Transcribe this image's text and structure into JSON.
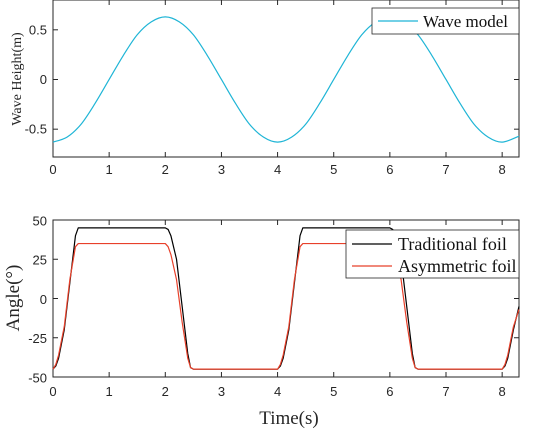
{
  "chart_data": [
    {
      "type": "line",
      "xlabel": "",
      "ylabel": "Wave Height(m)",
      "xlim": [
        0,
        8.3
      ],
      "ylim": [
        -0.78,
        0.8
      ],
      "xticks": [
        0,
        1,
        2,
        3,
        4,
        5,
        6,
        7,
        8
      ],
      "xtick_labels": [
        "0",
        "1",
        "2",
        "3",
        "4",
        "5",
        "6",
        "7",
        "8"
      ],
      "yticks": [
        -0.5,
        0,
        0.5
      ],
      "ytick_labels": [
        "-0.5",
        "0",
        "0.5"
      ],
      "legend": "top-right",
      "grid": false,
      "series": [
        {
          "name": "Wave model",
          "color": "#1fb5d6",
          "x": [
            0,
            0.25,
            0.5,
            0.75,
            1,
            1.25,
            1.5,
            1.75,
            2,
            2.25,
            2.5,
            2.75,
            3,
            3.25,
            3.5,
            3.75,
            4,
            4.25,
            4.5,
            4.75,
            5,
            5.25,
            5.5,
            5.75,
            6,
            6.25,
            6.5,
            6.75,
            7,
            7.25,
            7.5,
            7.75,
            8,
            8.3
          ],
          "y": [
            -0.63,
            -0.58,
            -0.45,
            -0.24,
            0,
            0.24,
            0.45,
            0.58,
            0.63,
            0.58,
            0.45,
            0.24,
            0,
            -0.24,
            -0.45,
            -0.58,
            -0.63,
            -0.58,
            -0.45,
            -0.24,
            0,
            0.24,
            0.45,
            0.58,
            0.63,
            0.58,
            0.45,
            0.24,
            0,
            -0.24,
            -0.45,
            -0.58,
            -0.63,
            -0.57
          ]
        }
      ]
    },
    {
      "type": "line",
      "xlabel": "Time(s)",
      "ylabel": "Angle(°)",
      "xlim": [
        0,
        8.3
      ],
      "ylim": [
        -50,
        50
      ],
      "xticks": [
        0,
        1,
        2,
        3,
        4,
        5,
        6,
        7,
        8
      ],
      "xtick_labels": [
        "0",
        "1",
        "2",
        "3",
        "4",
        "5",
        "6",
        "7",
        "8"
      ],
      "yticks": [
        -50,
        -25,
        0,
        25,
        50
      ],
      "ytick_labels": [
        "-50",
        "-25",
        "0",
        "25",
        "50"
      ],
      "legend": "top-right",
      "grid": false,
      "series": [
        {
          "name": "Traditional foil",
          "color": "#000000",
          "x": [
            0,
            0.05,
            0.1,
            0.2,
            0.3,
            0.4,
            0.45,
            2.0,
            2.05,
            2.1,
            2.2,
            2.3,
            2.4,
            2.45,
            2.5,
            4.0,
            4.05,
            4.1,
            4.2,
            4.3,
            4.4,
            4.45,
            6.0,
            6.05,
            6.1,
            6.2,
            6.3,
            6.4,
            6.45,
            6.5,
            8.0,
            8.05,
            8.1,
            8.2,
            8.3
          ],
          "y": [
            -45,
            -43,
            -38,
            -20,
            10,
            40,
            45,
            45,
            44,
            40,
            25,
            -5,
            -35,
            -44,
            -45,
            -45,
            -43,
            -38,
            -20,
            10,
            40,
            45,
            45,
            44,
            40,
            25,
            -5,
            -35,
            -44,
            -45,
            -45,
            -43,
            -38,
            -20,
            -5
          ]
        },
        {
          "name": "Asymmetric foil",
          "color": "#e8402a",
          "x": [
            0,
            0.05,
            0.1,
            0.2,
            0.3,
            0.4,
            0.45,
            2.0,
            2.05,
            2.1,
            2.2,
            2.3,
            2.4,
            2.45,
            2.5,
            4.0,
            4.05,
            4.1,
            4.2,
            4.3,
            4.4,
            4.45,
            6.0,
            6.05,
            6.1,
            6.2,
            6.3,
            6.4,
            6.45,
            6.5,
            8.0,
            8.05,
            8.1,
            8.2,
            8.3
          ],
          "y": [
            -45,
            -42,
            -36,
            -18,
            12,
            33,
            35,
            35,
            33,
            28,
            12,
            -15,
            -38,
            -44,
            -45,
            -45,
            -42,
            -36,
            -18,
            12,
            33,
            35,
            35,
            33,
            28,
            12,
            -15,
            -38,
            -44,
            -45,
            -45,
            -42,
            -36,
            -18,
            -7
          ]
        }
      ]
    }
  ]
}
